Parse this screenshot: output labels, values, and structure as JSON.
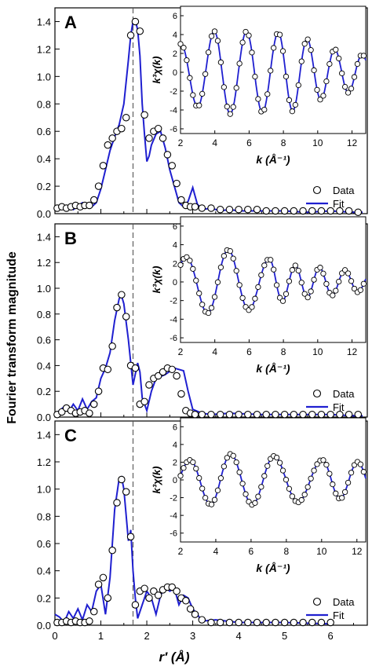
{
  "figure": {
    "shared_ylabel": "Fourier transform magnitude",
    "shared_xlabel": "r′ (Å)"
  },
  "colors": {
    "fit": "#1f1fd0",
    "data_edge": "#000000",
    "dashed": "#555555",
    "axis": "#000000"
  },
  "chart_data": [
    {
      "panel": "A",
      "type": "line",
      "x_range": [
        0,
        6.8
      ],
      "y_range": [
        0,
        1.5
      ],
      "yticks": [
        0.0,
        0.2,
        0.4,
        0.6,
        0.8,
        1.0,
        1.2,
        1.4
      ],
      "yticklabels": [
        "0.0",
        "0.2",
        "0.4",
        "0.6",
        "0.8",
        "1.0",
        "1.2",
        "1.4"
      ],
      "dashed_line_x": 1.7,
      "legend": [
        "Data",
        "Fit"
      ],
      "series": [
        {
          "name": "Data",
          "style": "markers",
          "x": [
            0.05,
            0.15,
            0.25,
            0.35,
            0.45,
            0.55,
            0.65,
            0.75,
            0.85,
            0.95,
            1.05,
            1.15,
            1.25,
            1.35,
            1.45,
            1.55,
            1.65,
            1.75,
            1.85,
            1.95,
            2.05,
            2.15,
            2.25,
            2.35,
            2.45,
            2.55,
            2.65,
            2.75,
            2.85,
            2.95,
            3.05,
            3.2,
            3.4,
            3.6,
            3.8,
            4.0,
            4.2,
            4.4,
            4.6,
            4.8,
            5.0,
            5.2,
            5.4,
            5.6,
            5.8,
            6.0,
            6.2,
            6.4,
            6.6
          ],
          "y": [
            0.04,
            0.05,
            0.04,
            0.05,
            0.06,
            0.05,
            0.06,
            0.06,
            0.1,
            0.2,
            0.35,
            0.5,
            0.55,
            0.6,
            0.62,
            0.7,
            1.3,
            1.4,
            1.33,
            0.72,
            0.55,
            0.6,
            0.62,
            0.55,
            0.43,
            0.35,
            0.22,
            0.1,
            0.06,
            0.05,
            0.05,
            0.04,
            0.04,
            0.03,
            0.03,
            0.03,
            0.03,
            0.03,
            0.02,
            0.02,
            0.02,
            0.02,
            0.02,
            0.02,
            0.02,
            0.02,
            0.02,
            0.02,
            0.01
          ]
        },
        {
          "name": "Fit",
          "style": "line",
          "x": [
            0.0,
            0.2,
            0.4,
            0.6,
            0.8,
            0.9,
            1.0,
            1.1,
            1.2,
            1.3,
            1.4,
            1.5,
            1.6,
            1.65,
            1.7,
            1.75,
            1.8,
            1.85,
            1.9,
            1.95,
            2.0,
            2.05,
            2.1,
            2.2,
            2.3,
            2.4,
            2.5,
            2.6,
            2.7,
            2.8,
            2.9,
            3.0,
            3.1,
            3.2,
            3.4,
            3.6,
            3.8,
            4.0,
            4.5,
            5.0,
            5.5,
            6.0,
            6.5,
            6.7
          ],
          "y": [
            0.03,
            0.06,
            0.03,
            0.08,
            0.05,
            0.08,
            0.18,
            0.32,
            0.46,
            0.56,
            0.65,
            0.8,
            1.12,
            1.3,
            1.4,
            1.41,
            1.34,
            1.15,
            0.8,
            0.58,
            0.38,
            0.42,
            0.5,
            0.58,
            0.6,
            0.48,
            0.32,
            0.2,
            0.08,
            0.05,
            0.09,
            0.19,
            0.07,
            0.03,
            0.04,
            0.02,
            0.03,
            0.02,
            0.02,
            0.02,
            0.01,
            0.02,
            0.01,
            0.01
          ]
        }
      ],
      "inset": {
        "x_range": [
          2,
          12.8
        ],
        "y_range": [
          -6.5,
          7
        ],
        "xticks": [
          2,
          4,
          6,
          8,
          10,
          12
        ],
        "yticks": [
          -6,
          -4,
          -2,
          0,
          2,
          4,
          6
        ],
        "xlabel": "k (Å⁻¹)",
        "ylabel": "k³χ(k)",
        "data_y_osc": {
          "k0": 2.0,
          "periods": [
            1.95,
            1.9,
            1.85,
            1.7,
            1.6
          ],
          "amps": [
            3.0,
            4.5,
            4.3,
            4.2,
            2.6,
            1.8
          ]
        }
      }
    },
    {
      "panel": "B",
      "type": "line",
      "x_range": [
        0,
        6.8
      ],
      "y_range": [
        0,
        1.5
      ],
      "yticks": [
        0.0,
        0.2,
        0.4,
        0.6,
        0.8,
        1.0,
        1.2,
        1.4
      ],
      "yticklabels": [
        "0.0",
        "0.2",
        "0.4",
        "0.6",
        "0.8",
        "1.0",
        "1.2",
        "1.4"
      ],
      "dashed_line_x": 1.7,
      "legend": [
        "Data",
        "Fit"
      ],
      "series": [
        {
          "name": "Data",
          "style": "markers",
          "x": [
            0.05,
            0.15,
            0.25,
            0.35,
            0.45,
            0.55,
            0.65,
            0.75,
            0.85,
            0.95,
            1.05,
            1.15,
            1.25,
            1.35,
            1.45,
            1.55,
            1.65,
            1.75,
            1.85,
            1.95,
            2.05,
            2.15,
            2.25,
            2.35,
            2.45,
            2.55,
            2.65,
            2.75,
            2.85,
            2.95,
            3.05,
            3.2,
            3.4,
            3.6,
            3.8,
            4.0,
            4.2,
            4.4,
            4.6,
            4.8,
            5.0,
            5.2,
            5.4,
            5.6,
            5.8,
            6.0,
            6.2,
            6.4,
            6.6
          ],
          "y": [
            0.02,
            0.04,
            0.07,
            0.05,
            0.03,
            0.04,
            0.05,
            0.03,
            0.1,
            0.2,
            0.38,
            0.37,
            0.55,
            0.85,
            0.95,
            0.78,
            0.4,
            0.38,
            0.1,
            0.12,
            0.25,
            0.3,
            0.32,
            0.35,
            0.38,
            0.37,
            0.32,
            0.18,
            0.05,
            0.03,
            0.02,
            0.02,
            0.02,
            0.02,
            0.02,
            0.02,
            0.02,
            0.02,
            0.02,
            0.02,
            0.02,
            0.02,
            0.02,
            0.02,
            0.02,
            0.02,
            0.02,
            0.02,
            0.02
          ]
        },
        {
          "name": "Fit",
          "style": "line",
          "x": [
            0.0,
            0.1,
            0.2,
            0.3,
            0.4,
            0.5,
            0.6,
            0.7,
            0.8,
            0.9,
            1.0,
            1.1,
            1.2,
            1.3,
            1.4,
            1.45,
            1.5,
            1.6,
            1.7,
            1.8,
            1.85,
            1.9,
            2.0,
            2.1,
            2.2,
            2.4,
            2.6,
            2.8,
            2.9,
            3.0,
            3.2,
            3.4,
            3.8,
            4.5,
            5.0,
            5.5,
            6.0,
            6.5,
            6.7
          ],
          "y": [
            0.02,
            0.05,
            0.08,
            0.04,
            0.1,
            0.05,
            0.14,
            0.06,
            0.12,
            0.15,
            0.3,
            0.38,
            0.5,
            0.75,
            0.92,
            0.94,
            0.88,
            0.6,
            0.25,
            0.42,
            0.35,
            0.15,
            0.05,
            0.2,
            0.3,
            0.33,
            0.38,
            0.36,
            0.2,
            0.06,
            0.03,
            0.02,
            0.03,
            0.02,
            0.02,
            0.02,
            0.02,
            0.01,
            0.01
          ]
        }
      ],
      "inset": {
        "x_range": [
          2,
          12.8
        ],
        "y_range": [
          -6.5,
          7
        ],
        "xticks": [
          2,
          4,
          6,
          8,
          10,
          12
        ],
        "yticks": [
          -6,
          -4,
          -2,
          0,
          2,
          4,
          6
        ],
        "xlabel": "k (Å⁻¹)",
        "ylabel": "k³χ(k)",
        "data_y_osc": {
          "k0": 2.3,
          "periods": [
            2.5,
            2.4,
            1.5,
            1.4,
            1.5
          ],
          "amps": [
            2.5,
            3.7,
            2.9,
            1.8,
            1.5,
            1.0
          ]
        }
      }
    },
    {
      "panel": "C",
      "type": "line",
      "x_range": [
        0,
        6.8
      ],
      "y_range": [
        0,
        1.5
      ],
      "yticks": [
        0.0,
        0.2,
        0.4,
        0.6,
        0.8,
        1.0,
        1.2,
        1.4
      ],
      "yticklabels": [
        "0.0",
        "0.2",
        "0.4",
        "0.6",
        "0.8",
        "1.0",
        "1.2",
        "1.4"
      ],
      "xticks": [
        0,
        1,
        2,
        3,
        4,
        5,
        6
      ],
      "dashed_line_x": 1.7,
      "legend": [
        "Data",
        "Fit"
      ],
      "series": [
        {
          "name": "Data",
          "style": "markers",
          "x": [
            0.05,
            0.15,
            0.25,
            0.35,
            0.45,
            0.55,
            0.65,
            0.75,
            0.85,
            0.95,
            1.05,
            1.15,
            1.25,
            1.35,
            1.45,
            1.55,
            1.65,
            1.75,
            1.85,
            1.95,
            2.05,
            2.15,
            2.25,
            2.35,
            2.45,
            2.55,
            2.65,
            2.75,
            2.85,
            2.95,
            3.05,
            3.2,
            3.4,
            3.6,
            3.8,
            4.0,
            4.2,
            4.4,
            4.6,
            4.8,
            5.0,
            5.2,
            5.4,
            5.6,
            5.8,
            6.0
          ],
          "y": [
            0.02,
            0.02,
            0.03,
            0.02,
            0.03,
            0.02,
            0.02,
            0.03,
            0.1,
            0.3,
            0.35,
            0.2,
            0.55,
            0.9,
            1.07,
            0.98,
            0.65,
            0.15,
            0.25,
            0.27,
            0.2,
            0.25,
            0.22,
            0.26,
            0.28,
            0.28,
            0.25,
            0.2,
            0.18,
            0.12,
            0.08,
            0.04,
            0.02,
            0.02,
            0.02,
            0.02,
            0.02,
            0.02,
            0.02,
            0.02,
            0.02,
            0.02,
            0.02,
            0.02,
            0.02,
            0.02
          ]
        },
        {
          "name": "Fit",
          "style": "line",
          "x": [
            0.0,
            0.1,
            0.2,
            0.3,
            0.4,
            0.5,
            0.6,
            0.7,
            0.8,
            0.9,
            1.0,
            1.1,
            1.2,
            1.3,
            1.4,
            1.45,
            1.5,
            1.6,
            1.65,
            1.7,
            1.75,
            1.8,
            1.9,
            2.0,
            2.1,
            2.2,
            2.3,
            2.4,
            2.5,
            2.6,
            2.7,
            2.8,
            2.9,
            3.0,
            3.1,
            3.2,
            3.5,
            4.0,
            5.0,
            6.0
          ],
          "y": [
            0.08,
            0.06,
            0.02,
            0.1,
            0.05,
            0.12,
            0.04,
            0.15,
            0.1,
            0.25,
            0.3,
            0.08,
            0.35,
            0.85,
            1.08,
            1.09,
            1.0,
            0.62,
            0.7,
            0.4,
            0.2,
            0.05,
            0.15,
            0.25,
            0.2,
            0.08,
            0.22,
            0.28,
            0.25,
            0.27,
            0.15,
            0.22,
            0.2,
            0.12,
            0.08,
            0.03,
            0.04,
            0.02,
            0.02,
            0.01
          ]
        }
      ],
      "inset": {
        "x_range": [
          2,
          12.5
        ],
        "y_range": [
          -7,
          7
        ],
        "xticks": [
          2,
          4,
          6,
          8,
          10,
          12
        ],
        "yticks": [
          -6,
          -4,
          -2,
          0,
          2,
          4,
          6
        ],
        "xlabel": "k (Å⁻¹)",
        "ylabel": "k³χ(k)",
        "data_y_osc": {
          "k0": 2.5,
          "periods": [
            2.35,
            2.45,
            2.75,
            2.0,
            1.9
          ],
          "amps": [
            2.0,
            3.0,
            2.8,
            2.6,
            2.2,
            2.0
          ]
        }
      }
    }
  ]
}
